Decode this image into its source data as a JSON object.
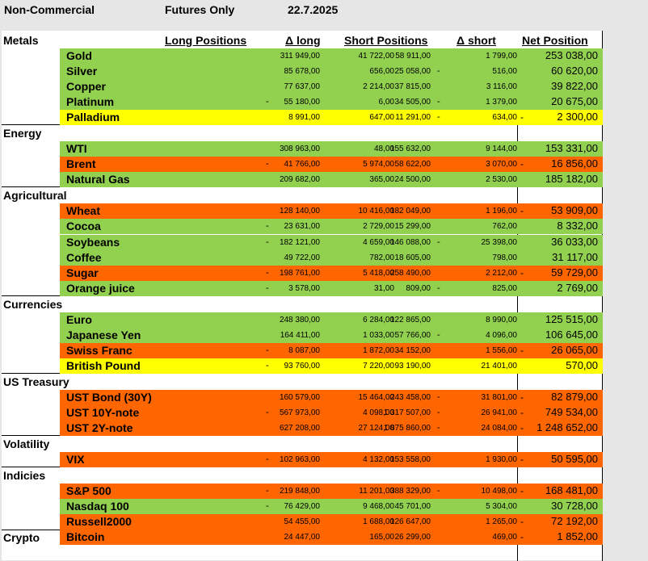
{
  "header": {
    "title": "Non-Commercial",
    "subtitle": "Futures Only",
    "date": "22.7.2025"
  },
  "columns": {
    "long": "Long Positions",
    "dlong": "Δ long",
    "short": "Short Positions",
    "dshort": "Δ short",
    "net": "Net Position"
  },
  "sections": [
    {
      "name": "Metals",
      "rows": [
        {
          "name": "Gold",
          "long": "311 949,00",
          "dlong_neg": "",
          "dlong": "41 722,00",
          "short": "58 911,00",
          "dshort_neg": "",
          "dshort": "1 799,00",
          "net_neg": "",
          "net": "253 038,00",
          "color": "#92d050"
        },
        {
          "name": "Silver",
          "long": "85 678,00",
          "dlong_neg": "",
          "dlong": "656,00",
          "short": "25 058,00",
          "dshort_neg": "-",
          "dshort": "516,00",
          "net_neg": "",
          "net": "60 620,00",
          "color": "#92d050"
        },
        {
          "name": "Copper",
          "long": "77 637,00",
          "dlong_neg": "",
          "dlong": "2 214,00",
          "short": "37 815,00",
          "dshort_neg": "",
          "dshort": "3 116,00",
          "net_neg": "",
          "net": "39 822,00",
          "color": "#92d050"
        },
        {
          "name": "Platinum",
          "long": "55 180,00",
          "dlong_neg": "-",
          "dlong": "6,00",
          "short": "34 505,00",
          "dshort_neg": "-",
          "dshort": "1 379,00",
          "net_neg": "",
          "net": "20 675,00",
          "color": "#92d050"
        },
        {
          "name": "Palladium",
          "long": "8 991,00",
          "dlong_neg": "",
          "dlong": "647,00",
          "short": "11 291,00",
          "dshort_neg": "-",
          "dshort": "634,00",
          "net_neg": "-",
          "net": "2 300,00",
          "color": "#ffff00"
        }
      ]
    },
    {
      "name": "Energy",
      "rows": [
        {
          "name": "WTI",
          "long": "308 963,00",
          "dlong_neg": "",
          "dlong": "48,00",
          "short": "155 632,00",
          "dshort_neg": "",
          "dshort": "9 144,00",
          "net_neg": "",
          "net": "153 331,00",
          "color": "#92d050"
        },
        {
          "name": "Brent",
          "long": "41 766,00",
          "dlong_neg": "-",
          "dlong": "5 974,00",
          "short": "58 622,00",
          "dshort_neg": "",
          "dshort": "3 070,00",
          "net_neg": "-",
          "net": "16 856,00",
          "color": "#ff6600"
        },
        {
          "name": "Natural Gas",
          "long": "209 682,00",
          "dlong_neg": "",
          "dlong": "365,00",
          "short": "24 500,00",
          "dshort_neg": "",
          "dshort": "2 530,00",
          "net_neg": "",
          "net": "185 182,00",
          "color": "#92d050"
        }
      ]
    },
    {
      "name": "Agricultural",
      "rows": [
        {
          "name": "Wheat",
          "long": "128 140,00",
          "dlong_neg": "",
          "dlong": "10 416,00",
          "short": "182 049,00",
          "dshort_neg": "",
          "dshort": "1 196,00",
          "net_neg": "-",
          "net": "53 909,00",
          "color": "#ff6600"
        },
        {
          "name": "Cocoa",
          "long": "23 631,00",
          "dlong_neg": "-",
          "dlong": "2 729,00",
          "short": "15 299,00",
          "dshort_neg": "",
          "dshort": "762,00",
          "net_neg": "",
          "net": "8 332,00",
          "color": "#92d050"
        },
        {
          "name": "Soybeans",
          "long": "182 121,00",
          "dlong_neg": "-",
          "dlong": "4 659,00",
          "short": "146 088,00",
          "dshort_neg": "-",
          "dshort": "25 398,00",
          "net_neg": "",
          "net": "36 033,00",
          "color": "#92d050"
        },
        {
          "name": "Coffee",
          "long": "49 722,00",
          "dlong_neg": "",
          "dlong": "782,00",
          "short": "18 605,00",
          "dshort_neg": "",
          "dshort": "798,00",
          "net_neg": "",
          "net": "31 117,00",
          "color": "#92d050"
        },
        {
          "name": "Sugar",
          "long": "198 761,00",
          "dlong_neg": "-",
          "dlong": "5 418,00",
          "short": "258 490,00",
          "dshort_neg": "",
          "dshort": "2 212,00",
          "net_neg": "-",
          "net": "59 729,00",
          "color": "#ff6600"
        },
        {
          "name": "Orange juice",
          "long": "3 578,00",
          "dlong_neg": "-",
          "dlong": "31,00",
          "short": "809,00",
          "dshort_neg": "-",
          "dshort": "825,00",
          "net_neg": "",
          "net": "2 769,00",
          "color": "#92d050"
        }
      ]
    },
    {
      "name": "Currencies",
      "rows": [
        {
          "name": "Euro",
          "long": "248 380,00",
          "dlong_neg": "",
          "dlong": "6 284,00",
          "short": "122 865,00",
          "dshort_neg": "",
          "dshort": "8 990,00",
          "net_neg": "",
          "net": "125 515,00",
          "color": "#92d050"
        },
        {
          "name": "Japanese Yen",
          "long": "164 411,00",
          "dlong_neg": "",
          "dlong": "1 033,00",
          "short": "57 766,00",
          "dshort_neg": "-",
          "dshort": "4 096,00",
          "net_neg": "",
          "net": "106 645,00",
          "color": "#92d050"
        },
        {
          "name": "Swiss Franc",
          "long": "8 087,00",
          "dlong_neg": "-",
          "dlong": "1 872,00",
          "short": "34 152,00",
          "dshort_neg": "",
          "dshort": "1 556,00",
          "net_neg": "-",
          "net": "26 065,00",
          "color": "#ff6600"
        },
        {
          "name": "British Pound",
          "long": "93 760,00",
          "dlong_neg": "-",
          "dlong": "7 220,00",
          "short": "93 190,00",
          "dshort_neg": "",
          "dshort": "21 401,00",
          "net_neg": "",
          "net": "570,00",
          "color": "#ffff00"
        }
      ]
    },
    {
      "name": "US Treasury",
      "rows": [
        {
          "name": "UST Bond (30Y)",
          "long": "160 579,00",
          "dlong_neg": "",
          "dlong": "15 464,00",
          "short": "243 458,00",
          "dshort_neg": "-",
          "dshort": "31 801,00",
          "net_neg": "-",
          "net": "82 879,00",
          "color": "#ff6600"
        },
        {
          "name": "UST 10Y-note",
          "long": "567 973,00",
          "dlong_neg": "-",
          "dlong": "4 098,00",
          "short": "1 317 507,00",
          "dshort_neg": "-",
          "dshort": "26 941,00",
          "net_neg": "-",
          "net": "749 534,00",
          "color": "#ff6600"
        },
        {
          "name": "UST 2Y-note",
          "long": "627 208,00",
          "dlong_neg": "",
          "dlong": "27 124,00",
          "short": "1 875 860,00",
          "dshort_neg": "-",
          "dshort": "24 084,00",
          "net_neg": "-",
          "net": "1 248 652,00",
          "color": "#ff6600"
        }
      ]
    },
    {
      "name": "Volatility",
      "rows": [
        {
          "name": "VIX",
          "long": "102 963,00",
          "dlong_neg": "-",
          "dlong": "4 132,00",
          "short": "153 558,00",
          "dshort_neg": "",
          "dshort": "1 930,00",
          "net_neg": "-",
          "net": "50 595,00",
          "color": "#ff6600"
        }
      ]
    },
    {
      "name": "Indicies",
      "rows": [
        {
          "name": "S&P 500",
          "long": "219 848,00",
          "dlong_neg": "-",
          "dlong": "11 201,00",
          "short": "388 329,00",
          "dshort_neg": "-",
          "dshort": "10 498,00",
          "net_neg": "-",
          "net": "168 481,00",
          "color": "#ff6600"
        },
        {
          "name": "Nasdaq 100",
          "long": "76 429,00",
          "dlong_neg": "-",
          "dlong": "9 468,00",
          "short": "45 701,00",
          "dshort_neg": "",
          "dshort": "5 304,00",
          "net_neg": "",
          "net": "30 728,00",
          "color": "#92d050"
        },
        {
          "name": "Russell2000",
          "long": "54 455,00",
          "dlong_neg": "",
          "dlong": "1 688,00",
          "short": "126 647,00",
          "dshort_neg": "",
          "dshort": "1 265,00",
          "net_neg": "-",
          "net": "72 192,00",
          "color": "#ff6600"
        }
      ]
    },
    {
      "name": "Crypto",
      "rows": [
        {
          "name": "Bitcoin",
          "long": "24 447,00",
          "dlong_neg": "",
          "dlong": "165,00",
          "short": "26 299,00",
          "dshort_neg": "",
          "dshort": "469,00",
          "net_neg": "-",
          "net": "1 852,00",
          "color": "#ff6600"
        }
      ]
    }
  ]
}
